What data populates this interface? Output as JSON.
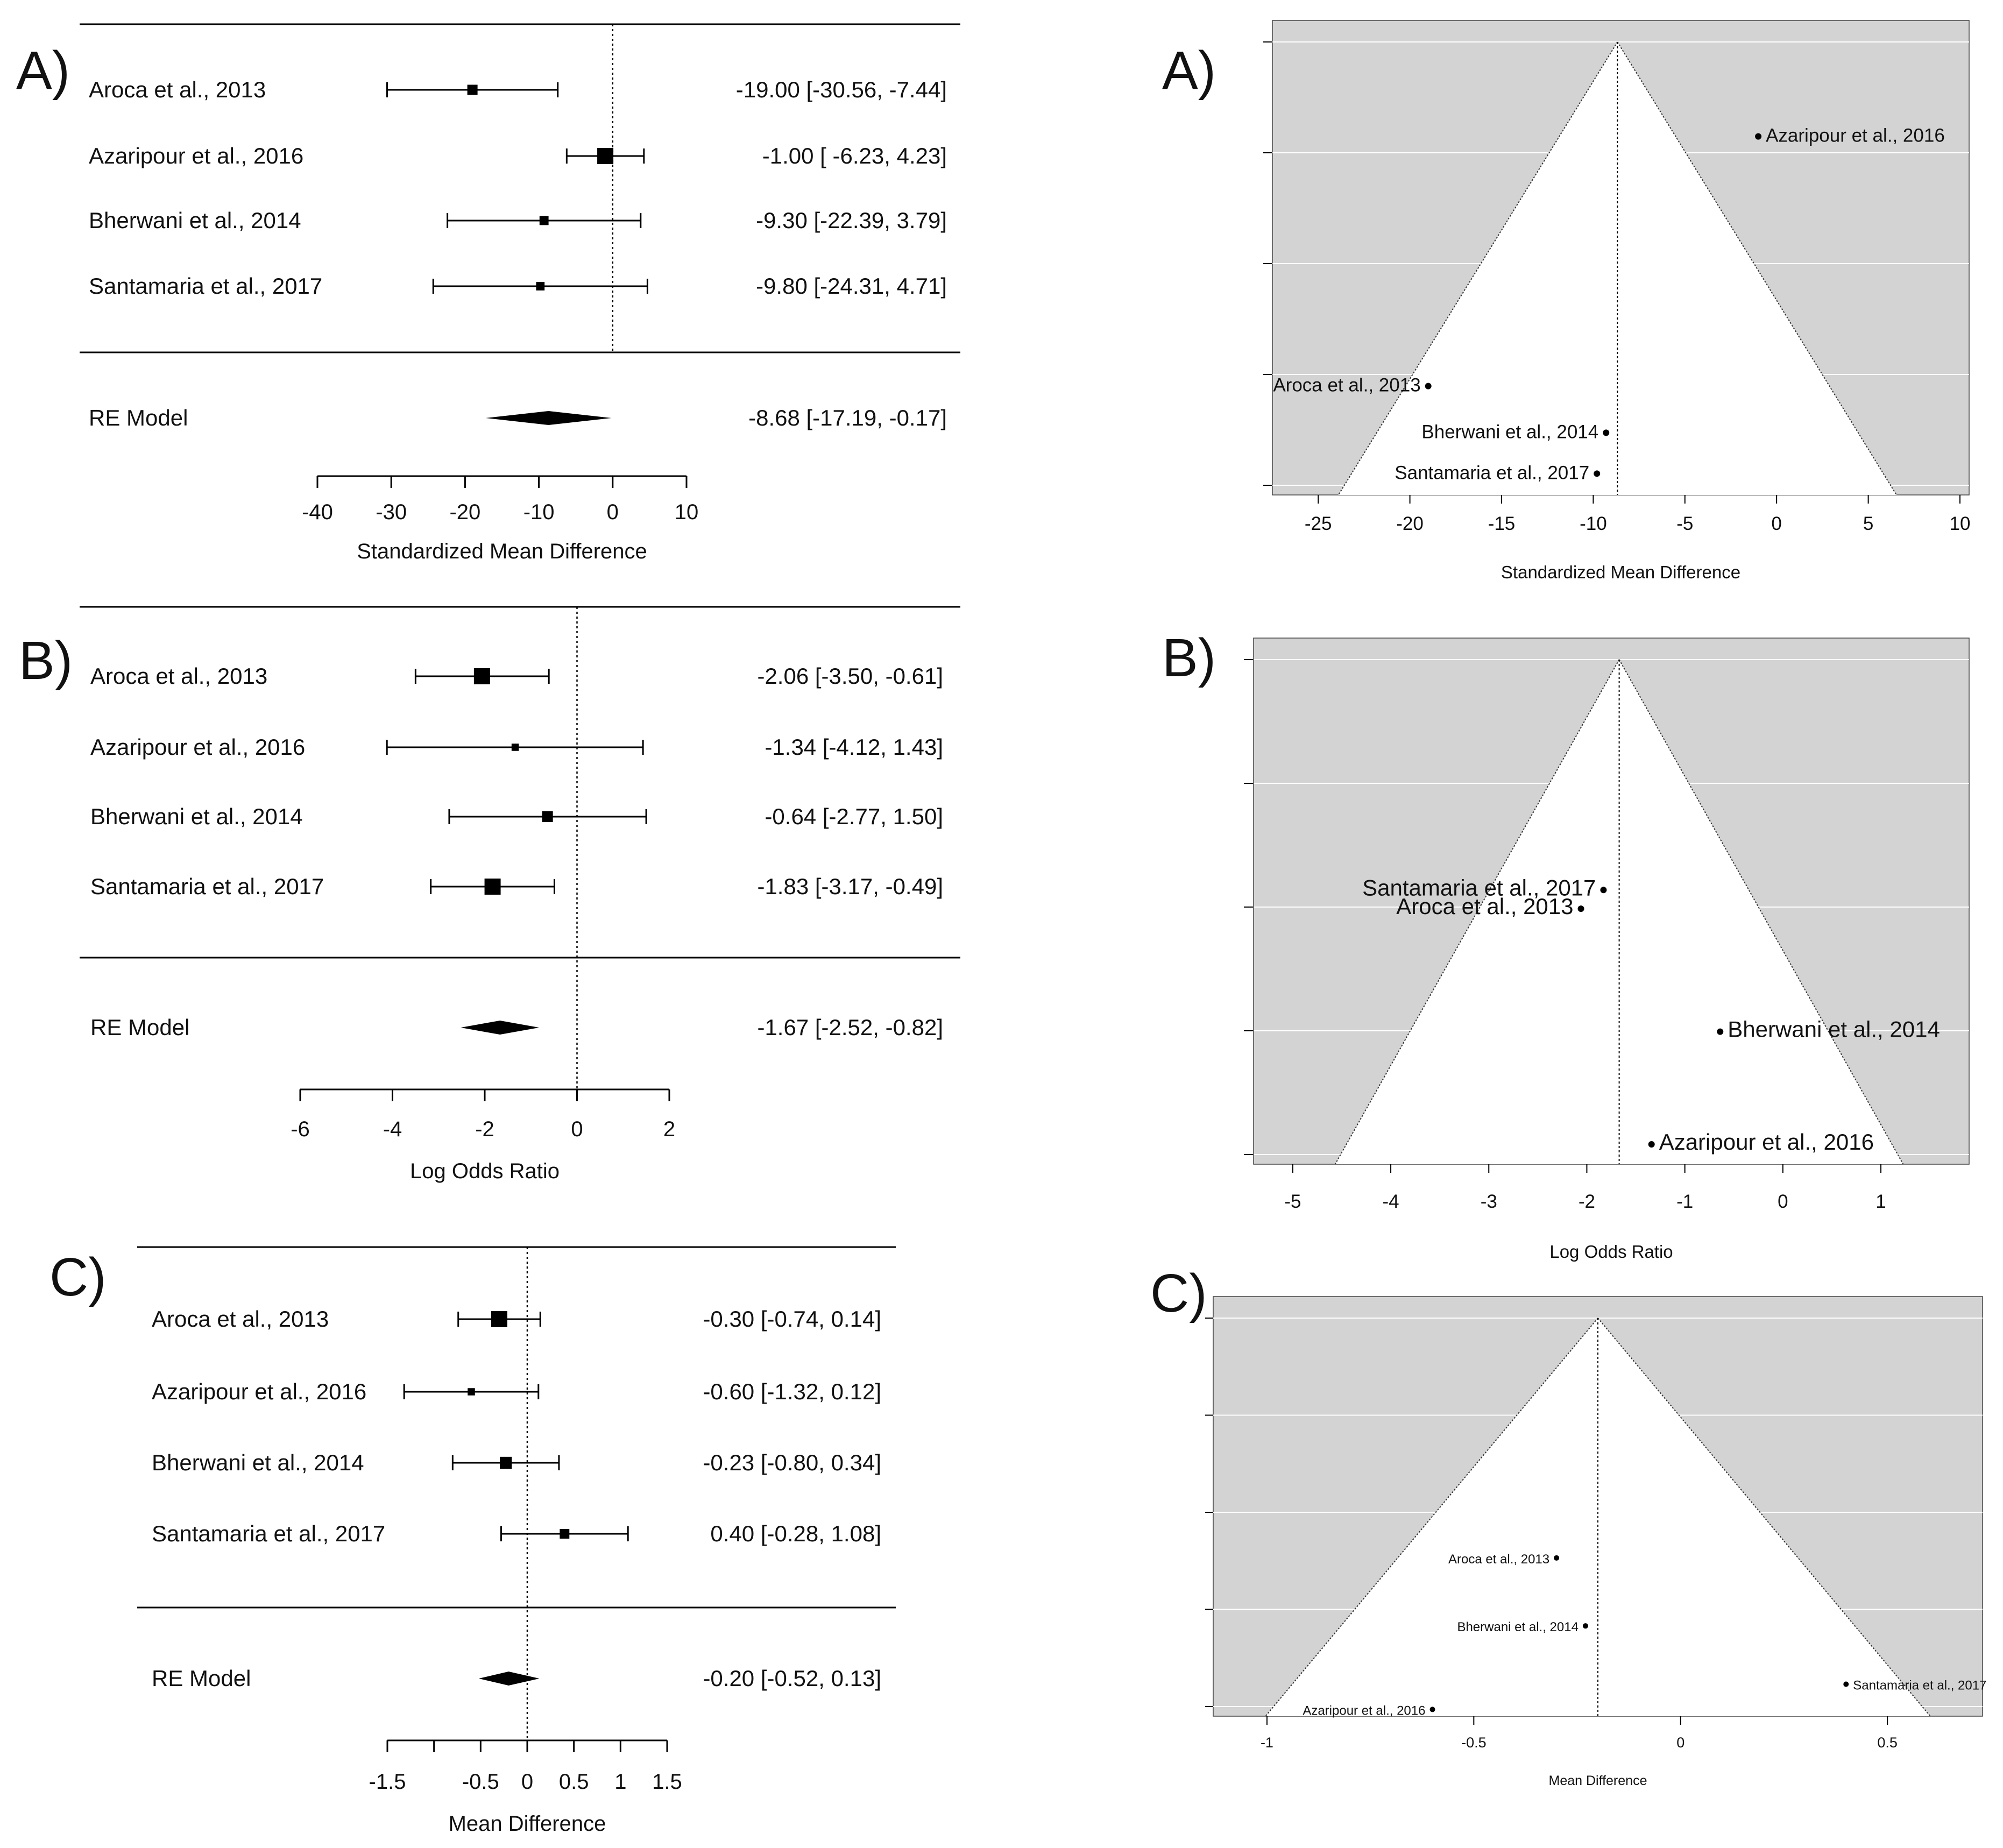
{
  "figure": {
    "forest_panels": [
      {
        "label": "A)",
        "xlabel": "Standardized Mean Difference",
        "xlim": [
          -40,
          10
        ],
        "ticks": [
          -40,
          -30,
          -20,
          -10,
          0,
          10
        ],
        "tick_labels": [
          "-40",
          "-30",
          "-20",
          "-10",
          "0",
          "10"
        ],
        "studies": [
          {
            "name": "Aroca et al., 2013",
            "est": -19.0,
            "lo": -30.56,
            "hi": -7.44,
            "weight": 0.5,
            "text": "-19.00 [-30.56, -7.44]"
          },
          {
            "name": "Azaripour et al., 2016",
            "est": -1.0,
            "lo": -6.23,
            "hi": 4.23,
            "weight": 1.0,
            "text": "-1.00 [ -6.23,  4.23]"
          },
          {
            "name": "Bherwani et al., 2014",
            "est": -9.3,
            "lo": -22.39,
            "hi": 3.79,
            "weight": 0.4,
            "text": "-9.30 [-22.39,  3.79]"
          },
          {
            "name": "Santamaria et al., 2017",
            "est": -9.8,
            "lo": -24.31,
            "hi": 4.71,
            "weight": 0.35,
            "text": "-9.80 [-24.31,  4.71]"
          }
        ],
        "summary": {
          "name": "RE Model",
          "est": -8.68,
          "lo": -17.19,
          "hi": -0.17,
          "text": "-8.68 [-17.19, -0.17]"
        }
      },
      {
        "label": "B)",
        "xlabel": "Log Odds Ratio",
        "xlim": [
          -6,
          2
        ],
        "ticks": [
          -6,
          -4,
          -2,
          0,
          2
        ],
        "tick_labels": [
          "-6",
          "-4",
          "-2",
          "0",
          "2"
        ],
        "studies": [
          {
            "name": "Aroca et al., 2013",
            "est": -2.06,
            "lo": -3.5,
            "hi": -0.61,
            "weight": 1.0,
            "text": "-2.06 [-3.50, -0.61]"
          },
          {
            "name": "Azaripour et al., 2016",
            "est": -1.34,
            "lo": -4.12,
            "hi": 1.43,
            "weight": 0.25,
            "text": "-1.34 [-4.12,  1.43]"
          },
          {
            "name": "Bherwani et al., 2014",
            "est": -0.64,
            "lo": -2.77,
            "hi": 1.5,
            "weight": 0.55,
            "text": "-0.64 [-2.77,  1.50]"
          },
          {
            "name": "Santamaria et al., 2017",
            "est": -1.83,
            "lo": -3.17,
            "hi": -0.49,
            "weight": 1.0,
            "text": "-1.83 [-3.17, -0.49]"
          }
        ],
        "summary": {
          "name": "RE Model",
          "est": -1.67,
          "lo": -2.52,
          "hi": -0.82,
          "text": "-1.67 [-2.52, -0.82]"
        }
      },
      {
        "label": "C)",
        "xlabel": "Mean Difference",
        "xlim": [
          -1.5,
          1.5
        ],
        "ticks": [
          -1.5,
          -1,
          -0.5,
          0,
          0.5,
          1,
          1.5
        ],
        "tick_labels": [
          "-1.5",
          "",
          "-0.5",
          "0",
          "0.5",
          "1",
          "1.5"
        ],
        "studies": [
          {
            "name": "Aroca et al., 2013",
            "est": -0.3,
            "lo": -0.74,
            "hi": 0.14,
            "weight": 1.0,
            "text": "-0.30 [-0.74, 0.14]"
          },
          {
            "name": "Azaripour et al., 2016",
            "est": -0.6,
            "lo": -1.32,
            "hi": 0.12,
            "weight": 0.25,
            "text": "-0.60 [-1.32, 0.12]"
          },
          {
            "name": "Bherwani et al., 2014",
            "est": -0.23,
            "lo": -0.8,
            "hi": 0.34,
            "weight": 0.65,
            "text": "-0.23 [-0.80, 0.34]"
          },
          {
            "name": "Santamaria et al., 2017",
            "est": 0.4,
            "lo": -0.28,
            "hi": 1.08,
            "weight": 0.45,
            "text": "0.40 [-0.28, 1.08]"
          }
        ],
        "summary": {
          "name": "RE Model",
          "est": -0.2,
          "lo": -0.52,
          "hi": 0.13,
          "text": "-0.20 [-0.52, 0.13]"
        }
      }
    ],
    "funnel_panels": [
      {
        "label": "A)",
        "xlabel": "Standardized Mean Difference",
        "xlim": [
          -27.5,
          10.5
        ],
        "ticks": [
          -25,
          -20,
          -15,
          -10,
          -5,
          0,
          5,
          10
        ],
        "tick_labels": [
          "-25",
          "-20",
          "-15",
          "-10",
          "-5",
          "0",
          "5",
          "10"
        ],
        "center": -8.68,
        "se_max": 7.6,
        "points": [
          {
            "name": "Azaripour et al., 2016",
            "x": -1.0,
            "se": 1.62,
            "side": "right"
          },
          {
            "name": "Aroca et al., 2013",
            "x": -19.0,
            "se": 5.9,
            "side": "left"
          },
          {
            "name": "Bherwani et al., 2014",
            "x": -9.3,
            "se": 6.7,
            "side": "left"
          },
          {
            "name": "Santamaria et al., 2017",
            "x": -9.8,
            "se": 7.4,
            "side": "left"
          }
        ]
      },
      {
        "label": "B)",
        "xlabel": "Log Odds Ratio",
        "xlim": [
          -5.4,
          1.9
        ],
        "ticks": [
          -5,
          -4,
          -3,
          -2,
          -1,
          0,
          1
        ],
        "tick_labels": [
          "-5",
          "-4",
          "-3",
          "-2",
          "-1",
          "0",
          "1"
        ],
        "center": -1.67,
        "se_max": 1.45,
        "points": [
          {
            "name": "Santamaria et al., 2017",
            "x": -1.83,
            "se": 0.675,
            "side": "left"
          },
          {
            "name": "Aroca et al., 2013",
            "x": -2.06,
            "se": 0.73,
            "side": "left"
          },
          {
            "name": "Bherwani et al., 2014",
            "x": -0.64,
            "se": 1.09,
            "side": "right"
          },
          {
            "name": "Azaripour et al., 2016",
            "x": -1.34,
            "se": 1.42,
            "side": "right"
          }
        ]
      },
      {
        "label": "C)",
        "xlabel": "Mean Difference",
        "xlim": [
          -1.13,
          0.73
        ],
        "ticks": [
          -1,
          -0.5,
          0,
          0.5
        ],
        "tick_labels": [
          "-1",
          "-0.5",
          "0",
          "0.5"
        ],
        "center": -0.2,
        "se_max": 0.4,
        "points": [
          {
            "name": "Aroca et al., 2013",
            "x": -0.3,
            "se": 0.247,
            "side": "left"
          },
          {
            "name": "Bherwani et al., 2014",
            "x": -0.23,
            "se": 0.317,
            "side": "left"
          },
          {
            "name": "Santamaria et al., 2017",
            "x": 0.4,
            "se": 0.377,
            "side": "right"
          },
          {
            "name": "Azaripour et al., 2016",
            "x": -0.6,
            "se": 0.403,
            "side": "left"
          }
        ]
      }
    ]
  },
  "chart_data": [
    {
      "type": "forest",
      "title": "A)",
      "xlabel": "Standardized Mean Difference",
      "categories": [
        "Aroca et al., 2013",
        "Azaripour et al., 2016",
        "Bherwani et al., 2014",
        "Santamaria et al., 2017",
        "RE Model"
      ],
      "values": [
        -19.0,
        -1.0,
        -9.3,
        -9.8,
        -8.68
      ],
      "lower": [
        -30.56,
        -6.23,
        -22.39,
        -24.31,
        -17.19
      ],
      "upper": [
        -7.44,
        4.23,
        3.79,
        4.71,
        -0.17
      ],
      "xlim": [
        -40,
        10
      ]
    },
    {
      "type": "forest",
      "title": "B)",
      "xlabel": "Log Odds Ratio",
      "categories": [
        "Aroca et al., 2013",
        "Azaripour et al., 2016",
        "Bherwani et al., 2014",
        "Santamaria et al., 2017",
        "RE Model"
      ],
      "values": [
        -2.06,
        -1.34,
        -0.64,
        -1.83,
        -1.67
      ],
      "lower": [
        -3.5,
        -4.12,
        -2.77,
        -3.17,
        -2.52
      ],
      "upper": [
        -0.61,
        1.43,
        1.5,
        -0.49,
        -0.82
      ],
      "xlim": [
        -6,
        2
      ]
    },
    {
      "type": "forest",
      "title": "C)",
      "xlabel": "Mean Difference",
      "categories": [
        "Aroca et al., 2013",
        "Azaripour et al., 2016",
        "Bherwani et al., 2014",
        "Santamaria et al., 2017",
        "RE Model"
      ],
      "values": [
        -0.3,
        -0.6,
        -0.23,
        0.4,
        -0.2
      ],
      "lower": [
        -0.74,
        -1.32,
        -0.8,
        -0.28,
        -0.52
      ],
      "upper": [
        0.14,
        0.12,
        0.34,
        1.08,
        0.13
      ],
      "xlim": [
        -1.5,
        1.5
      ]
    },
    {
      "type": "scatter",
      "title": "A) funnel",
      "xlabel": "Standardized Mean Difference",
      "points": [
        [
          "Azaripour et al., 2016",
          -1.0
        ],
        [
          "Aroca et al., 2013",
          -19.0
        ],
        [
          "Bherwani et al., 2014",
          -9.3
        ],
        [
          "Santamaria et al., 2017",
          -9.8
        ]
      ],
      "center": -8.68,
      "xlim": [
        -27.5,
        10.5
      ]
    },
    {
      "type": "scatter",
      "title": "B) funnel",
      "xlabel": "Log Odds Ratio",
      "points": [
        [
          "Santamaria et al., 2017",
          -1.83
        ],
        [
          "Aroca et al., 2013",
          -2.06
        ],
        [
          "Bherwani et al., 2014",
          -0.64
        ],
        [
          "Azaripour et al., 2016",
          -1.34
        ]
      ],
      "center": -1.67,
      "xlim": [
        -5.4,
        1.9
      ]
    },
    {
      "type": "scatter",
      "title": "C) funnel",
      "xlabel": "Mean Difference",
      "points": [
        [
          "Aroca et al., 2013",
          -0.3
        ],
        [
          "Bherwani et al., 2014",
          -0.23
        ],
        [
          "Santamaria et al., 2017",
          0.4
        ],
        [
          "Azaripour et al., 2016",
          -0.6
        ]
      ],
      "center": -0.2,
      "xlim": [
        -1.13,
        0.73
      ]
    }
  ]
}
